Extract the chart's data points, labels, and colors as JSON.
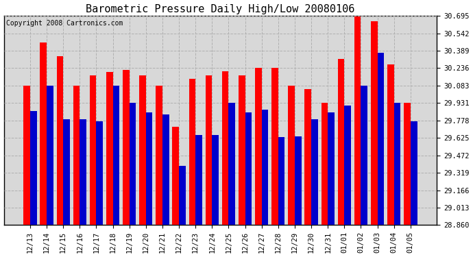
{
  "title": "Barometric Pressure Daily High/Low 20080106",
  "copyright": "Copyright 2008 Cartronics.com",
  "categories": [
    "12/13",
    "12/14",
    "12/15",
    "12/16",
    "12/17",
    "12/18",
    "12/19",
    "12/20",
    "12/21",
    "12/22",
    "12/23",
    "12/24",
    "12/25",
    "12/26",
    "12/27",
    "12/28",
    "12/29",
    "12/30",
    "12/31",
    "01/01",
    "01/02",
    "01/03",
    "01/04",
    "01/05"
  ],
  "highs": [
    30.083,
    30.46,
    30.34,
    30.083,
    30.17,
    30.2,
    30.22,
    30.17,
    30.083,
    29.72,
    30.14,
    30.17,
    30.21,
    30.17,
    30.24,
    30.24,
    30.083,
    30.05,
    29.93,
    30.32,
    30.69,
    30.65,
    30.27,
    29.93
  ],
  "lows": [
    29.86,
    30.08,
    29.79,
    29.79,
    29.77,
    30.08,
    29.93,
    29.85,
    29.83,
    29.38,
    29.65,
    29.65,
    29.93,
    29.85,
    29.87,
    29.63,
    29.64,
    29.79,
    29.85,
    29.91,
    30.08,
    30.37,
    29.93,
    29.77
  ],
  "high_color": "#ff0000",
  "low_color": "#0000cc",
  "bg_color": "#ffffff",
  "plot_bg_color": "#d8d8d8",
  "ylim_min": 28.86,
  "ylim_max": 30.695,
  "yticks": [
    28.86,
    29.013,
    29.166,
    29.319,
    29.472,
    29.625,
    29.778,
    29.931,
    30.083,
    30.236,
    30.389,
    30.542,
    30.695
  ],
  "grid_color": "#b0b0b0",
  "title_fontsize": 11,
  "tick_fontsize": 7.5,
  "copyright_fontsize": 7
}
